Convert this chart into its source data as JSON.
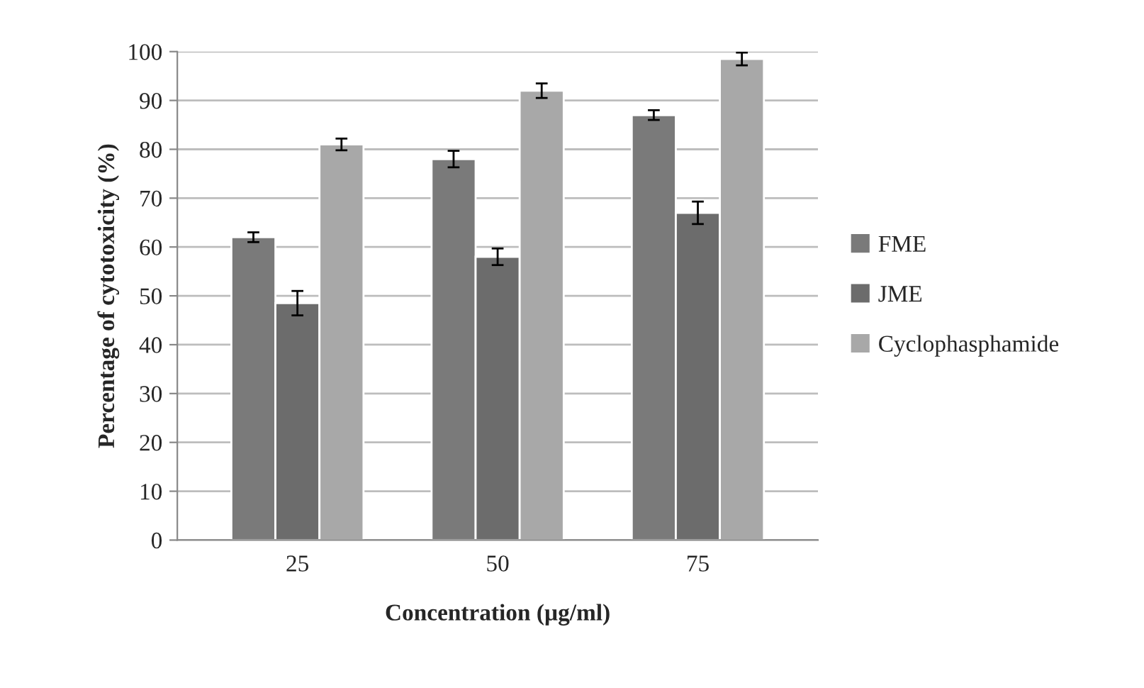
{
  "chart_data": {
    "type": "bar",
    "xlabel": "Concentration (µg/ml)",
    "ylabel": "Percentage of cytotoxicity (%)",
    "categories": [
      "25",
      "50",
      "75"
    ],
    "series": [
      {
        "name": "FME",
        "color": "#7a7a7a",
        "values": [
          62,
          78,
          87
        ],
        "errors": [
          1,
          1.7,
          1
        ]
      },
      {
        "name": "JME",
        "color": "#6c6c6c",
        "values": [
          48.5,
          58,
          67
        ],
        "errors": [
          2.5,
          1.7,
          2.3
        ]
      },
      {
        "name": "Cyclophasphamide",
        "color": "#a8a8a8",
        "values": [
          81,
          92,
          98.5
        ],
        "errors": [
          1.2,
          1.5,
          1.3
        ]
      }
    ],
    "ylim": [
      0,
      100
    ],
    "yticks": [
      0,
      10,
      20,
      30,
      40,
      50,
      60,
      70,
      80,
      90,
      100
    ],
    "grid": "y",
    "legend": "right"
  }
}
